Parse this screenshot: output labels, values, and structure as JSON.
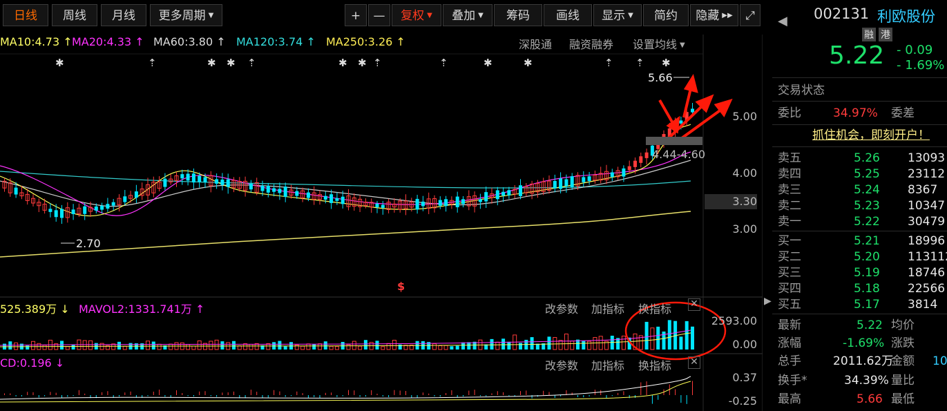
{
  "toolbar": {
    "tab_day": "日线",
    "tab_week": "周线",
    "tab_month": "月线",
    "tab_more": "更多周期",
    "zoom_in": "+",
    "zoom_out": "—",
    "fuquan": "复权",
    "diejia": "叠加",
    "chouma": "筹码",
    "huaxian": "画线",
    "xianshi": "显示",
    "jianyue": "简约",
    "yincang": "隐藏"
  },
  "ma_legend": {
    "ma10": "MA10:4.73",
    "ma20": "MA20:4.33",
    "ma60": "MA60:3.80",
    "ma120": "MA120:3.74",
    "ma250": "MA250:3.26",
    "up_arrow": "↑",
    "links": [
      "深股通",
      "融资融券",
      "设置均线"
    ]
  },
  "price_axis": {
    "labels": [
      "5.00",
      "4.00",
      "3.30",
      "3.00"
    ],
    "high_marker": "5.66",
    "low_marker": "2.70",
    "range_label": "4.44-4.60"
  },
  "volume_panel": {
    "legend_vol": "525.389万",
    "legend_mavol2": "MAVOL2:1331.741万",
    "axis_top": "2593.00",
    "axis_bottom": "0.00",
    "actions": [
      "改参数",
      "加指标",
      "换指标"
    ]
  },
  "macd_panel": {
    "legend": "CD:0.196",
    "axis_top": "0.37",
    "axis_bottom": "-0.25",
    "actions": [
      "改参数",
      "加指标",
      "换指标"
    ]
  },
  "stock": {
    "code": "002131",
    "name": "利欧股份",
    "badges": [
      "融",
      "港"
    ],
    "price": "5.22",
    "change": "- 0.09",
    "change_pct": "- 1.69%"
  },
  "trade_status": {
    "label": "交易状态",
    "weibi_label": "委比",
    "weibi_value": "34.97%",
    "weicha_label": "委差",
    "promo": "抓住机会，即刻开户！"
  },
  "order_book": {
    "sell": [
      {
        "label": "卖五",
        "price": "5.26",
        "volume": "13093"
      },
      {
        "label": "卖四",
        "price": "5.25",
        "volume": "23112"
      },
      {
        "label": "卖三",
        "price": "5.24",
        "volume": "8367"
      },
      {
        "label": "卖二",
        "price": "5.23",
        "volume": "10347"
      },
      {
        "label": "卖一",
        "price": "5.22",
        "volume": "30479"
      }
    ],
    "buy": [
      {
        "label": "买一",
        "price": "5.21",
        "volume": "18996"
      },
      {
        "label": "买二",
        "price": "5.20",
        "volume": "113112"
      },
      {
        "label": "买三",
        "price": "5.19",
        "volume": "18746"
      },
      {
        "label": "买四",
        "price": "5.18",
        "volume": "22566"
      },
      {
        "label": "买五",
        "price": "5.17",
        "volume": "3814"
      }
    ]
  },
  "quote": {
    "latest_label": "最新",
    "latest_value": "5.22",
    "avg_label": "均价",
    "zhangfu_label": "涨幅",
    "zhangfu_value": "-1.69%",
    "zhangdie_label": "涨跌",
    "zongshou_label": "总手",
    "zongshou_value": "2011.62万",
    "jine_label": "金额",
    "jine_value": "10",
    "huanshou_label": "换手*",
    "huanshou_value": "34.39%",
    "liangbi_label": "量比",
    "zuigao_label": "最高",
    "zuigao_value": "5.66",
    "zuidi_label": "最低"
  },
  "colors": {
    "up": "#ff3b3b",
    "down": "#1ee06a",
    "cyan_candle": "#00e5ff",
    "ma10": "#ffff66",
    "ma20": "#ff33ff",
    "ma60": "#dddddd",
    "ma120": "#33dddd",
    "ma250": "#ffee55"
  }
}
